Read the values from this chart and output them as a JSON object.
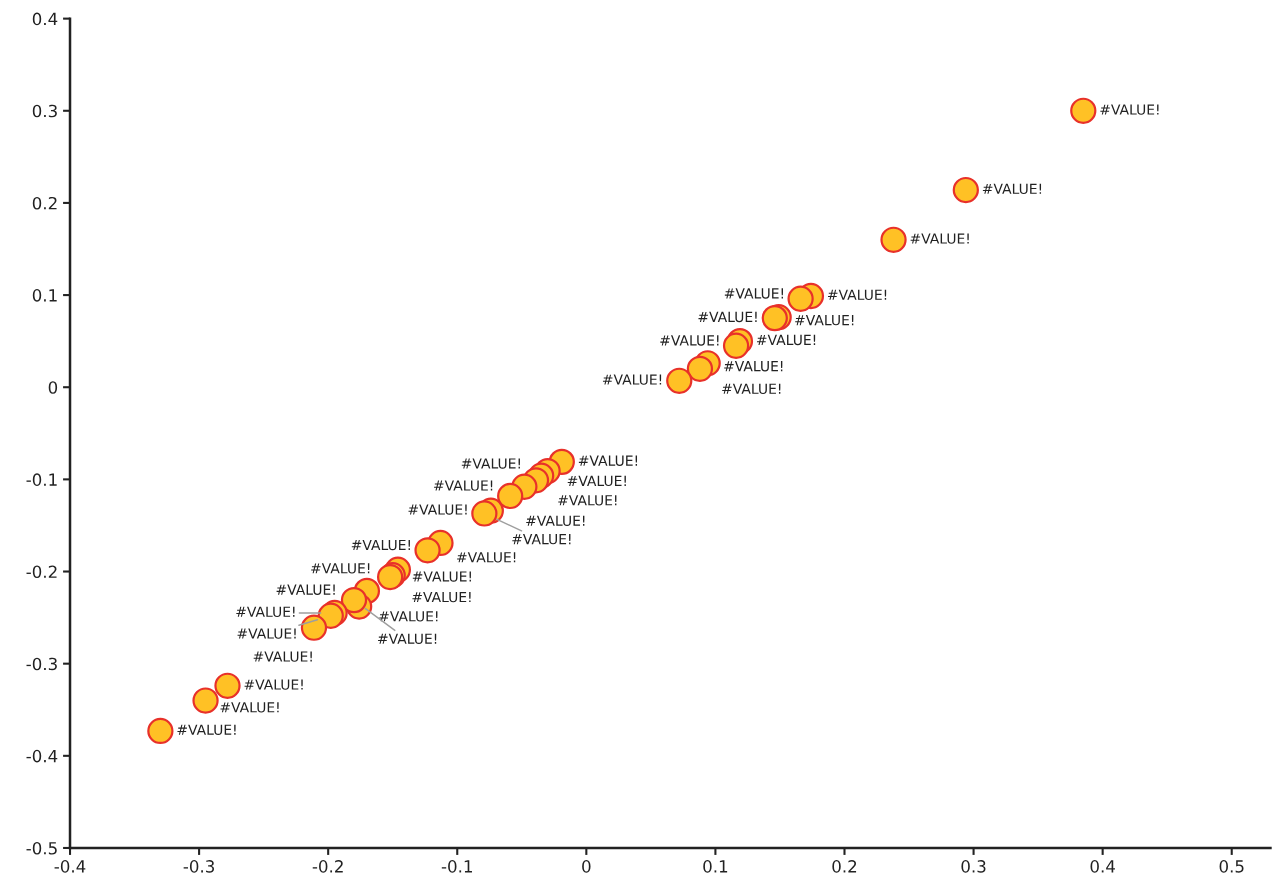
{
  "chart_data": {
    "type": "scatter",
    "x": [
      0.385,
      0.294,
      0.238,
      0.174,
      0.166,
      0.149,
      0.146,
      0.119,
      0.116,
      0.094,
      0.088,
      0.072,
      -0.019,
      -0.03,
      -0.035,
      -0.039,
      -0.048,
      -0.059,
      -0.074,
      -0.079,
      -0.113,
      -0.123,
      -0.146,
      -0.15,
      -0.152,
      -0.17,
      -0.176,
      -0.18,
      -0.195,
      -0.198,
      -0.211,
      -0.278,
      -0.295,
      -0.33
    ],
    "series": [
      {
        "color": "#ffc125",
        "values": [
          0.3,
          0.214,
          0.16,
          0.099,
          0.096,
          0.076,
          0.075,
          0.05,
          0.045,
          0.026,
          0.02,
          0.007,
          -0.081,
          -0.091,
          -0.096,
          -0.101,
          -0.108,
          -0.118,
          -0.134,
          -0.137,
          -0.169,
          -0.177,
          -0.198,
          -0.204,
          -0.206,
          -0.221,
          -0.238,
          -0.231,
          -0.245,
          -0.248,
          -0.261,
          -0.324,
          -0.34,
          -0.373
        ],
        "value_labels": [
          "#VALUE!",
          "#VALUE!",
          "#VALUE!",
          "#VALUE!",
          "#VALUE!",
          "#VALUE!",
          "#VALUE!",
          "#VALUE!",
          "#VALUE!",
          "#VALUE!",
          "#VALUE!",
          "#VALUE!",
          "#VALUE!",
          "#VALUE!",
          "#VALUE!",
          "#VALUE!",
          "#VALUE!",
          "#VALUE!",
          "#VALUE!",
          "#VALUE!",
          "#VALUE!",
          "#VALUE!",
          "#VALUE!",
          "#VALUE!",
          "#VALUE!",
          "#VALUE!",
          "#VALUE!",
          "#VALUE!",
          "#VALUE!",
          "#VALUE!",
          "#VALUE!",
          "#VALUE!",
          "#VALUE!",
          "#VALUE!"
        ]
      }
    ],
    "xlim": [
      -0.4,
      0.53
    ],
    "xticks": [
      -0.4,
      -0.3,
      -0.2,
      -0.1,
      0,
      0.1,
      0.2,
      0.3,
      0.4,
      0.5
    ],
    "ylim": [
      -0.5,
      0.4
    ],
    "yticks": [
      -0.5,
      -0.4,
      -0.3,
      -0.2,
      -0.1,
      0,
      0.1,
      0.2,
      0.3,
      0.4
    ],
    "marker": "circle",
    "grid": false
  }
}
